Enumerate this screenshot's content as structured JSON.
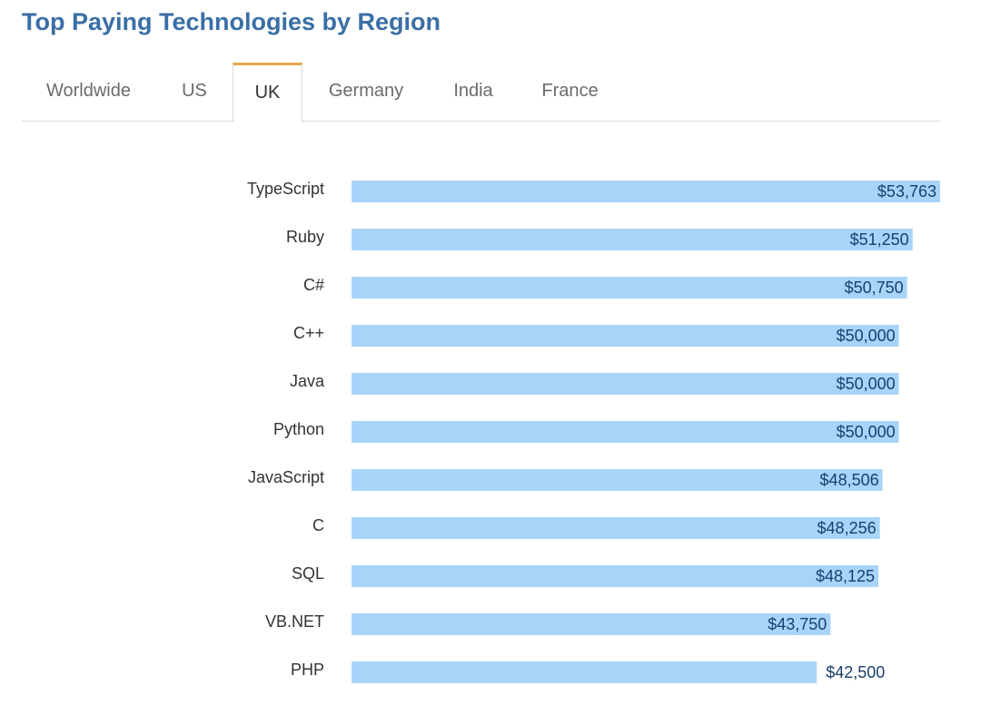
{
  "title": "Top Paying Technologies by Region",
  "tabs": [
    {
      "label": "Worldwide",
      "active": false
    },
    {
      "label": "US",
      "active": false
    },
    {
      "label": "UK",
      "active": true
    },
    {
      "label": "Germany",
      "active": false
    },
    {
      "label": "India",
      "active": false
    },
    {
      "label": "France",
      "active": false
    }
  ],
  "colors": {
    "title": "#3a6fa6",
    "bar": "#a8d4f9",
    "value_label": "#1a3f6b",
    "category_label": "#333333",
    "active_tab_accent": "#e2a94a"
  },
  "chart_data": {
    "type": "bar",
    "orientation": "horizontal",
    "categories": [
      "TypeScript",
      "Ruby",
      "C#",
      "C++",
      "Java",
      "Python",
      "JavaScript",
      "C",
      "SQL",
      "VB.NET",
      "PHP"
    ],
    "values": [
      53763,
      51250,
      50750,
      50000,
      50000,
      50000,
      48506,
      48256,
      48125,
      43750,
      42500
    ],
    "value_labels": [
      "$53,763",
      "$51,250",
      "$50,750",
      "$50,000",
      "$50,000",
      "$50,000",
      "$48,506",
      "$48,256",
      "$48,125",
      "$43,750",
      "$42,500"
    ],
    "xlim": [
      0,
      53763
    ],
    "grid": false,
    "legend": "none"
  }
}
